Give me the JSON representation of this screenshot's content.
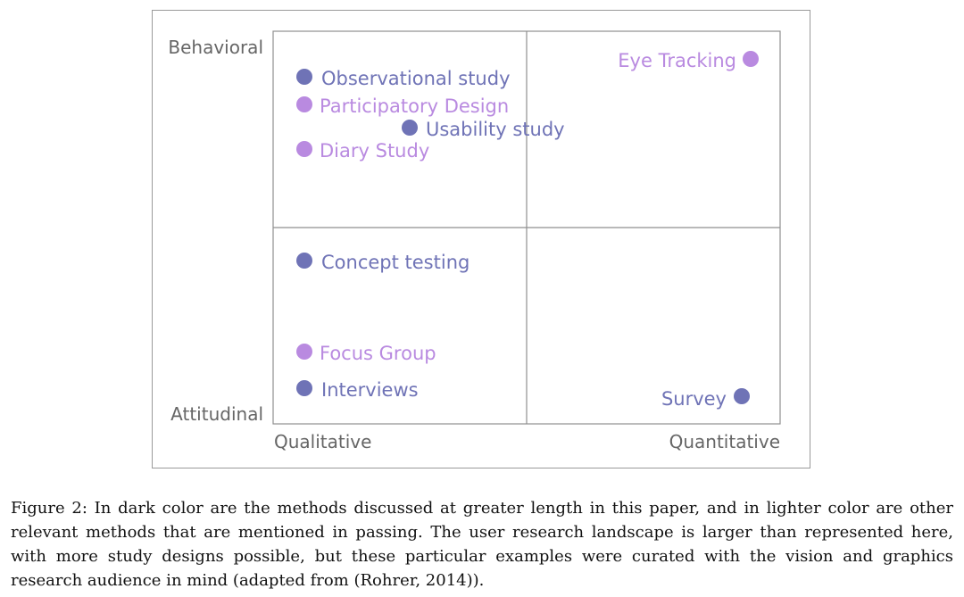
{
  "figure": {
    "axes": {
      "y_top": "Behavioral",
      "y_bottom": "Attitudinal",
      "x_left": "Qualitative",
      "x_right": "Quantitative"
    },
    "colors": {
      "dark": "#6f73b6",
      "light": "#b98ae0",
      "grid": "#8f8f8f",
      "axis_label": "#666666"
    },
    "methods": [
      {
        "label": "Observational study",
        "tone": "dark"
      },
      {
        "label": "Participatory Design",
        "tone": "light"
      },
      {
        "label": "Usability study",
        "tone": "dark"
      },
      {
        "label": "Diary Study",
        "tone": "light"
      },
      {
        "label": "Eye Tracking",
        "tone": "light"
      },
      {
        "label": "Concept testing",
        "tone": "dark"
      },
      {
        "label": "Focus Group",
        "tone": "light"
      },
      {
        "label": "Interviews",
        "tone": "dark"
      },
      {
        "label": "Survey",
        "tone": "dark"
      }
    ]
  },
  "caption": {
    "text": "Figure 2: In dark color are the methods discussed at greater length in this paper, and in lighter color are other relevant methods that are mentioned in passing. The user research landscape is larger than represented here, with more study designs possible, but these particular examples were curated with the vision and graphics research audience in mind (adapted from (Rohrer, 2014))."
  }
}
